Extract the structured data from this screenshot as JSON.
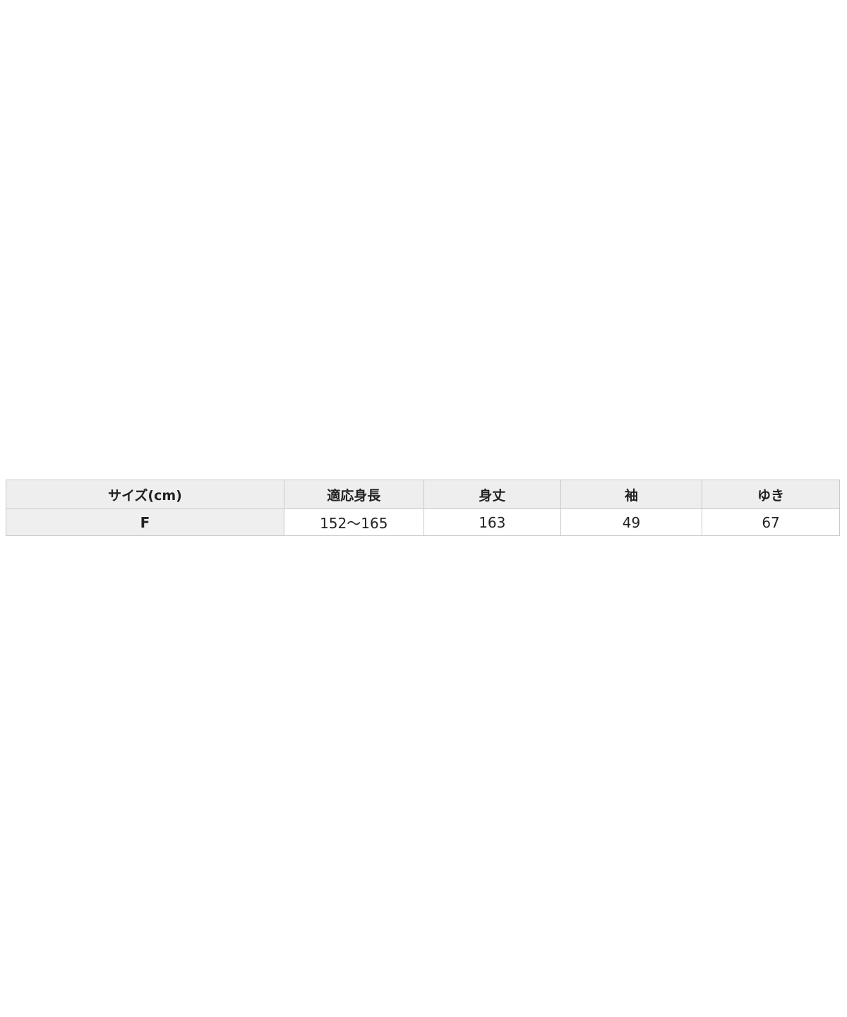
{
  "size_chart": {
    "headers": [
      "サイズ(cm)",
      "適応身長",
      "身丈",
      "袖",
      "ゆき"
    ],
    "row": {
      "label": "F",
      "values": [
        "152～165",
        "163",
        "49",
        "67"
      ]
    },
    "colors": {
      "header_bg": "#eeeeee",
      "row_label_bg": "#efefef",
      "cell_bg": "#ffffff",
      "border": "#c9c9c9",
      "text": "#222222"
    }
  }
}
